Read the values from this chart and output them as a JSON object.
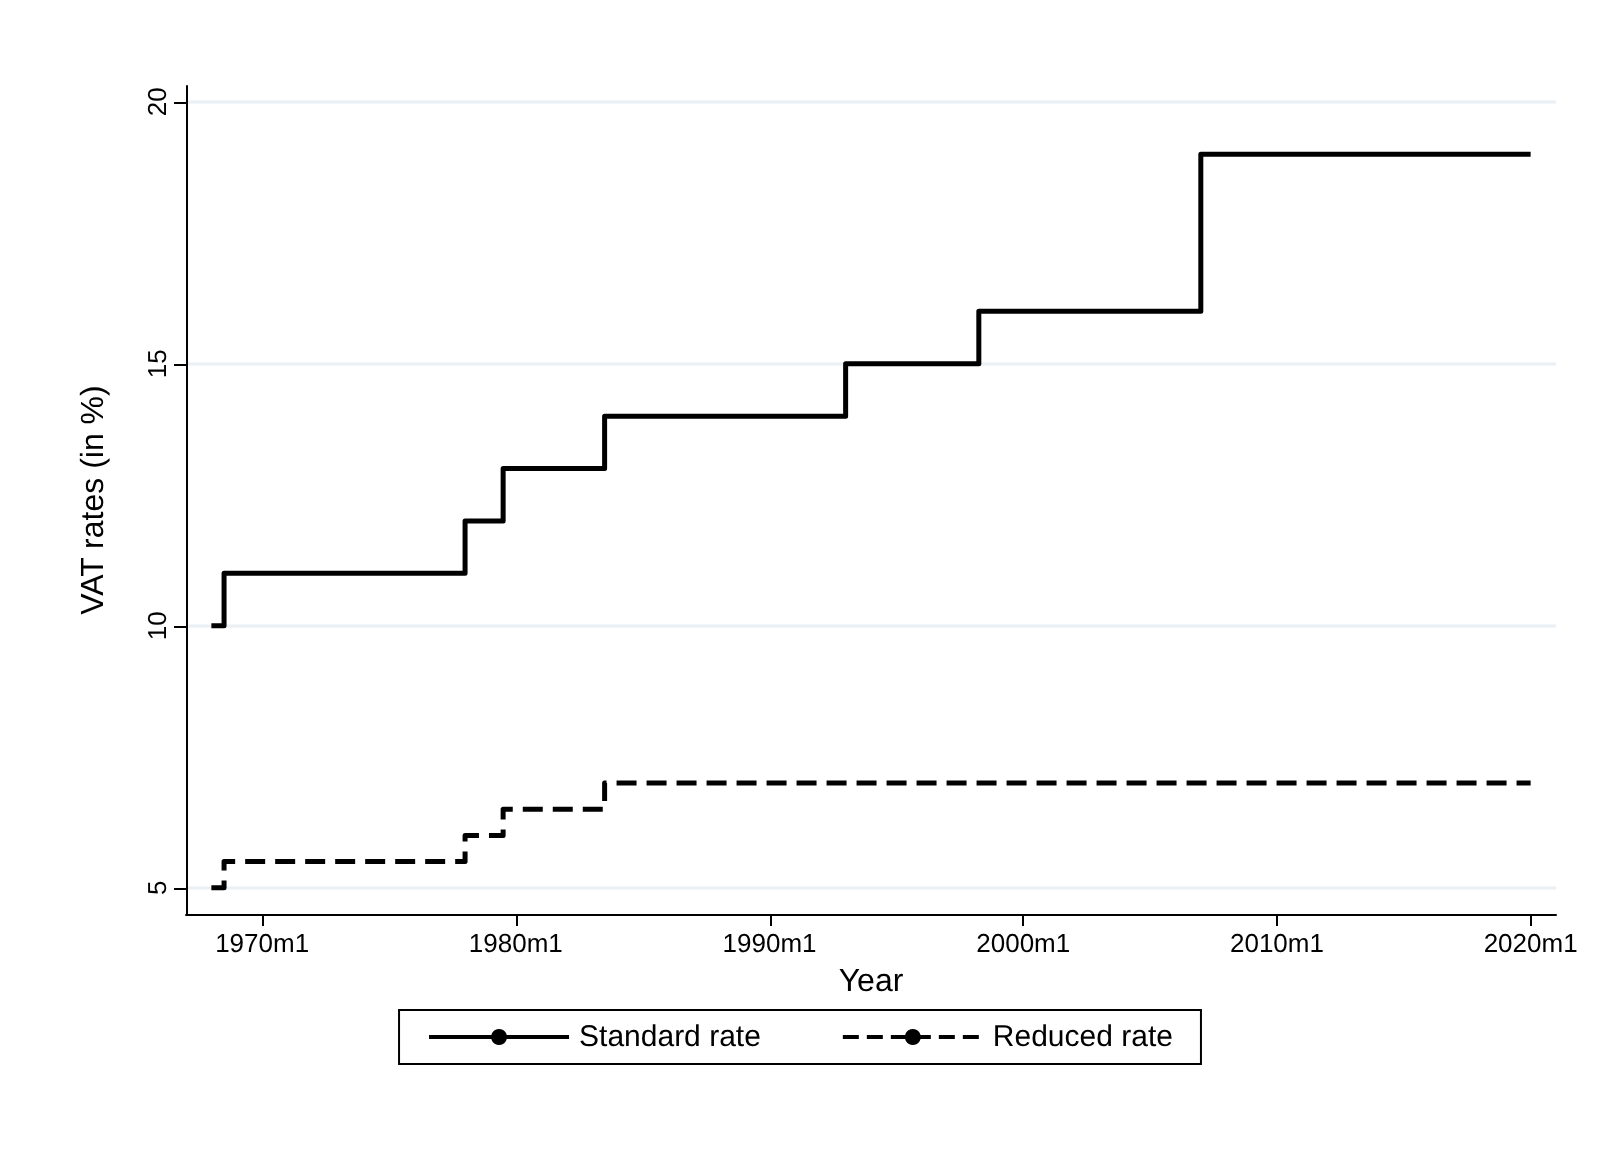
{
  "chart_data": {
    "type": "step",
    "xlabel": "Year",
    "ylabel": "VAT rates (in %)",
    "xlim": [
      "1967-01",
      "2021-01"
    ],
    "xticks": [
      {
        "value": "1970-01",
        "label": "1970m1"
      },
      {
        "value": "1980-01",
        "label": "1980m1"
      },
      {
        "value": "1990-01",
        "label": "1990m1"
      },
      {
        "value": "2000-01",
        "label": "2000m1"
      },
      {
        "value": "2010-01",
        "label": "2010m1"
      },
      {
        "value": "2020-01",
        "label": "2020m1"
      }
    ],
    "ylim": [
      4.5,
      20.3
    ],
    "yticks": [
      5,
      10,
      15,
      20
    ],
    "grid": "y",
    "legend": "bottom",
    "series": [
      {
        "name": "Standard rate",
        "color": "#000000",
        "line_style": "solid",
        "x": [
          "1968-01",
          "1968-07",
          "1978-01",
          "1979-07",
          "1983-07",
          "1993-01",
          "1998-04",
          "2007-01",
          "2020-01"
        ],
        "values": [
          10,
          11,
          12,
          13,
          14,
          15,
          16,
          19,
          19
        ]
      },
      {
        "name": "Reduced rate",
        "color": "#000000",
        "line_style": "dashed",
        "x": [
          "1968-01",
          "1968-07",
          "1978-01",
          "1979-07",
          "1983-07",
          "2020-01"
        ],
        "values": [
          5,
          5.5,
          6,
          6.5,
          7,
          7
        ]
      }
    ]
  }
}
